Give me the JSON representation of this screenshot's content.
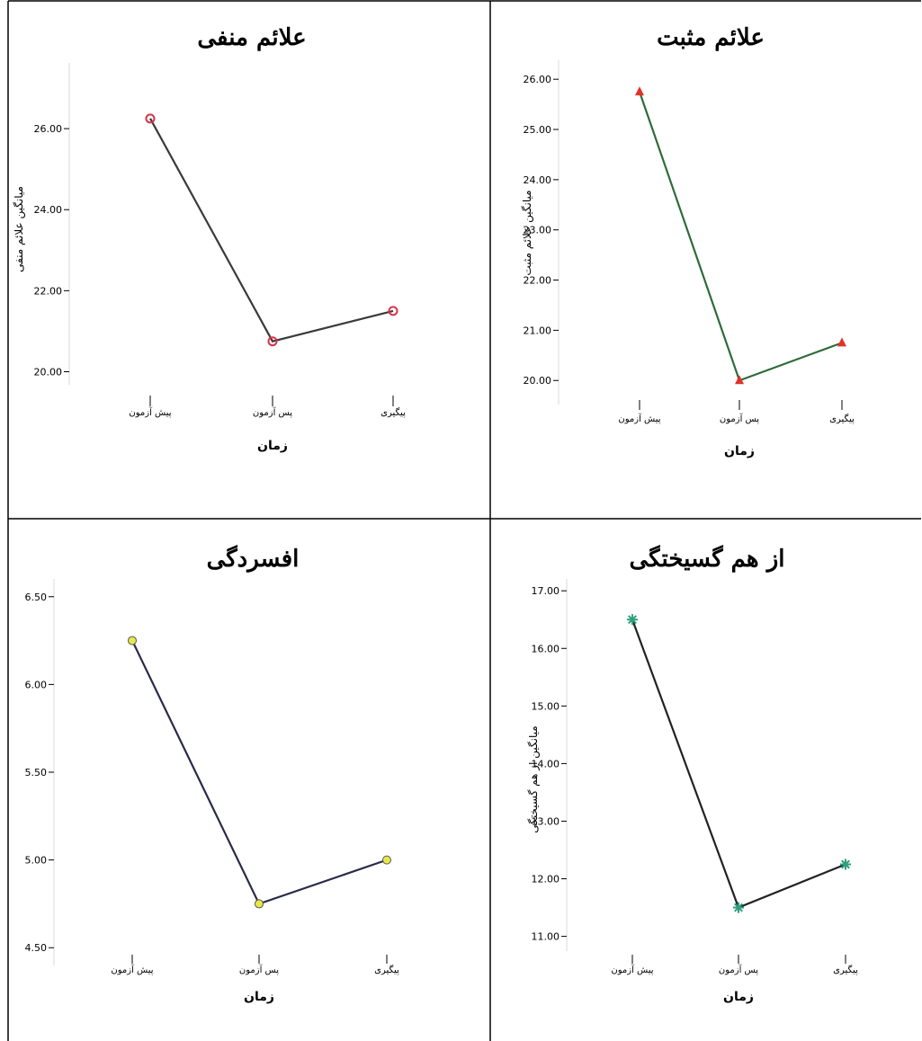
{
  "chart_data": [
    {
      "id": "negative",
      "type": "line",
      "title": "علائم منفی",
      "xlabel": "زمان",
      "ylabel": "میانگین علائم منفی",
      "categories": [
        "پیش آزمون",
        "پس آزمون",
        "پیگیری"
      ],
      "values": [
        26.25,
        20.75,
        21.5
      ],
      "ylim": [
        19.9,
        27.4
      ],
      "yticks": [
        20.0,
        22.0,
        24.0,
        26.0
      ],
      "grid": false,
      "line_color": "#3a3a3a",
      "marker": "circle",
      "marker_color": "#d9324a"
    },
    {
      "id": "positive",
      "type": "line",
      "title": "علائم مثبت",
      "xlabel": "زمان",
      "ylabel": "میانگین علائم مثبت",
      "categories": [
        "پیش آزمون",
        "پس آزمون",
        "پیگیری"
      ],
      "values": [
        25.75,
        20.0,
        20.75
      ],
      "ylim": [
        19.7,
        26.2
      ],
      "yticks": [
        20.0,
        21.0,
        22.0,
        23.0,
        24.0,
        25.0,
        26.0
      ],
      "grid": false,
      "line_color": "#2e6b3a",
      "marker": "triangle",
      "marker_color": "#e0312b"
    },
    {
      "id": "depression",
      "type": "line",
      "title": "افسردگی",
      "xlabel": "زمان",
      "ylabel": "",
      "categories": [
        "پیش آزمون",
        "پس آزمون",
        "پیگیری"
      ],
      "values": [
        6.25,
        4.75,
        5.0
      ],
      "ylim": [
        4.45,
        6.55
      ],
      "yticks": [
        4.5,
        5.0,
        5.5,
        6.0,
        6.5
      ],
      "grid": false,
      "line_color": "#2a2a4a",
      "marker": "circle",
      "marker_color": "#e8e84a"
    },
    {
      "id": "disorganization",
      "type": "line",
      "title": "از هم گسیختگی",
      "xlabel": "زمان",
      "ylabel": "میانگین از هم گسیختگی",
      "categories": [
        "پیش آزمون",
        "پس آزمون",
        "پیگیری"
      ],
      "values": [
        16.5,
        11.5,
        12.25
      ],
      "ylim": [
        10.9,
        17.05
      ],
      "yticks": [
        11.0,
        12.0,
        13.0,
        14.0,
        15.0,
        16.0,
        17.0
      ],
      "grid": false,
      "line_color": "#222222",
      "marker": "star",
      "marker_color": "#2f9e7c"
    }
  ]
}
